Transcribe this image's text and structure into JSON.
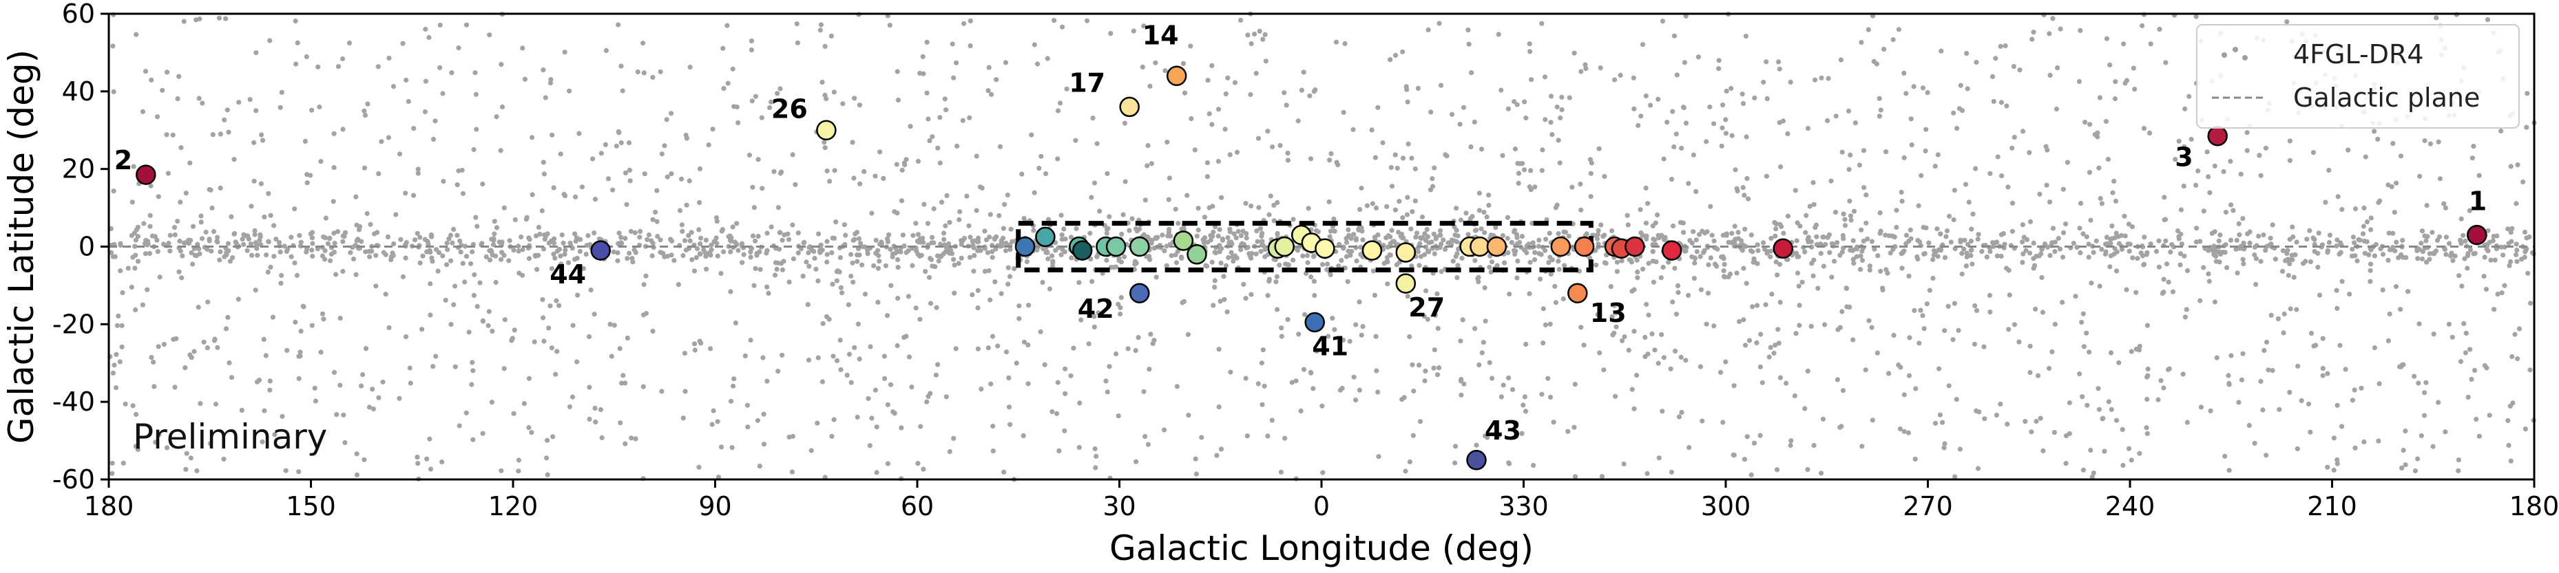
{
  "chart_data": {
    "type": "scatter",
    "title": "",
    "xlabel": "Galactic Longitude (deg)",
    "ylabel": "Galactic Latitude (deg)",
    "x_tick_labels": [
      "180",
      "150",
      "120",
      "90",
      "60",
      "30",
      "0",
      "330",
      "300",
      "270",
      "240",
      "210",
      "180"
    ],
    "y_tick_labels": [
      "60",
      "40",
      "20",
      "0",
      "-20",
      "-40",
      "-60"
    ],
    "ylim": [
      -60,
      60
    ],
    "x_axis_direction": "longitude decreasing left to right, centered on 0",
    "grid": false,
    "legend": {
      "placement": "top-right",
      "entries": [
        "4FGL-DR4",
        "Galactic plane"
      ]
    },
    "annotation": "Preliminary",
    "galactic_plane_latitude": 0,
    "highlight_box": {
      "lon_range": [
        45,
        320
      ],
      "lat_range": [
        -6,
        6
      ]
    },
    "background_series": {
      "name": "4FGL-DR4",
      "description_count_drawn": 0,
      "color": "#a0a0a0"
    },
    "sources": [
      {
        "label": "2",
        "lon": 174.5,
        "lat": 18.5,
        "color": "#a50f3c"
      },
      {
        "label": "26",
        "lon": 73.5,
        "lat": 30,
        "color": "#f6f3a4"
      },
      {
        "label": "17",
        "lon": 28.5,
        "lat": 36,
        "color": "#fde39a"
      },
      {
        "label": "14",
        "lon": 21.5,
        "lat": 44,
        "color": "#f8a557"
      },
      {
        "label": "44",
        "lon": 107,
        "lat": -1,
        "color": "#4a4ea8"
      },
      {
        "label": "42",
        "lon": 27,
        "lat": -12,
        "color": "#4a6cb4"
      },
      {
        "label": "41",
        "lon": 1,
        "lat": -19.5,
        "color": "#3d6fb4"
      },
      {
        "label": "27",
        "lon": 347.5,
        "lat": -9.5,
        "color": "#f4f1a0"
      },
      {
        "label": "13",
        "lon": 322,
        "lat": -12,
        "color": "#f58a4e"
      },
      {
        "label": "43",
        "lon": 337,
        "lat": -55,
        "color": "#4a52a0"
      },
      {
        "label": "3",
        "lon": 227,
        "lat": 28.5,
        "color": "#b31c3e"
      },
      {
        "label": "1",
        "lon": 188.5,
        "lat": 3,
        "color": "#a50f3c"
      },
      {
        "label": "",
        "lon": 44,
        "lat": 0,
        "color": "#3b78b4"
      },
      {
        "label": "",
        "lon": 41,
        "lat": 2.5,
        "color": "#48a5a8"
      },
      {
        "label": "",
        "lon": 36,
        "lat": 0,
        "color": "#5bbba1"
      },
      {
        "label": "",
        "lon": 35.5,
        "lat": -1,
        "color": "#1b5f60"
      },
      {
        "label": "",
        "lon": 32,
        "lat": 0,
        "color": "#6cc3a5"
      },
      {
        "label": "",
        "lon": 30.5,
        "lat": 0,
        "color": "#7bc8a4"
      },
      {
        "label": "",
        "lon": 27,
        "lat": 0,
        "color": "#8dd1a4"
      },
      {
        "label": "",
        "lon": 20.5,
        "lat": 1.5,
        "color": "#a6d98f"
      },
      {
        "label": "",
        "lon": 18.5,
        "lat": -2,
        "color": "#93d297"
      },
      {
        "label": "",
        "lon": 6.5,
        "lat": -0.5,
        "color": "#d4ed9b"
      },
      {
        "label": "",
        "lon": 5.5,
        "lat": 0,
        "color": "#e3f29f"
      },
      {
        "label": "",
        "lon": 3,
        "lat": 3,
        "color": "#f3f9a7"
      },
      {
        "label": "",
        "lon": 1.5,
        "lat": 1,
        "color": "#fbfaaa"
      },
      {
        "label": "",
        "lon": 359.5,
        "lat": -0.5,
        "color": "#fdf9ad"
      },
      {
        "label": "",
        "lon": 352.5,
        "lat": -1,
        "color": "#fef5a6"
      },
      {
        "label": "",
        "lon": 347.5,
        "lat": -1.5,
        "color": "#fef0a0"
      },
      {
        "label": "",
        "lon": 338,
        "lat": 0,
        "color": "#fee79b"
      },
      {
        "label": "",
        "lon": 336.5,
        "lat": 0,
        "color": "#fdd98d"
      },
      {
        "label": "",
        "lon": 334,
        "lat": 0,
        "color": "#fdb870"
      },
      {
        "label": "",
        "lon": 324.5,
        "lat": 0,
        "color": "#f99b5b"
      },
      {
        "label": "",
        "lon": 321,
        "lat": 0,
        "color": "#f4804d"
      },
      {
        "label": "",
        "lon": 316.5,
        "lat": 0,
        "color": "#ec6446"
      },
      {
        "label": "",
        "lon": 315.5,
        "lat": -0.5,
        "color": "#e34a3f"
      },
      {
        "label": "",
        "lon": 313.5,
        "lat": 0,
        "color": "#d9343f"
      },
      {
        "label": "",
        "lon": 308,
        "lat": -1,
        "color": "#e0283f"
      },
      {
        "label": "",
        "lon": 291.5,
        "lat": -0.5,
        "color": "#c81d3a"
      }
    ]
  }
}
